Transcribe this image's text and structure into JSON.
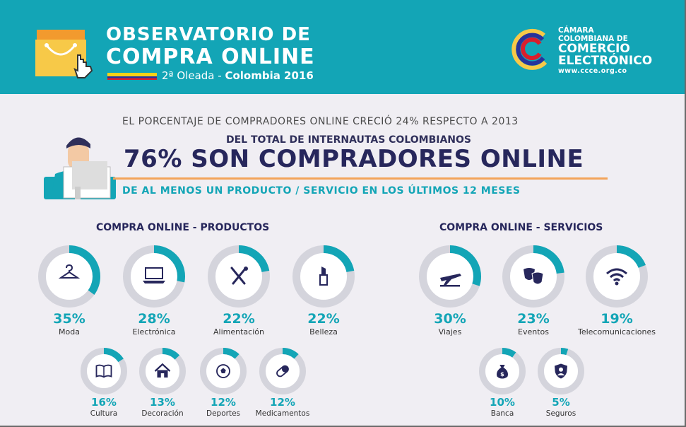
{
  "header": {
    "title_line1": "OBSERVATORIO DE",
    "title_line2": "COMPRA ONLINE",
    "subtitle_wave": "2ª Oleada - ",
    "subtitle_place": "Colombia 2016",
    "logo": {
      "line1": "CÁMARA",
      "line2": "COLOMBIANA DE",
      "line3": "COMERCIO",
      "line4": "ELECTRÓNICO",
      "line5": "www.ccce.org.co"
    }
  },
  "colors": {
    "header_bg": "#13a5b6",
    "accent_teal": "#13a5b6",
    "ring_gray": "#d4d4dc",
    "navy": "#27275c",
    "orange": "#f3a45a",
    "flag_yellow": "#f7d117",
    "flag_blue": "#27339b",
    "flag_red": "#d91e2c"
  },
  "headline": {
    "intro": "EL PORCENTAJE DE COMPRADORES ONLINE CRECIÓ 24% RESPECTO A 2013",
    "sub": "DEL TOTAL DE INTERNAUTAS COLOMBIANOS",
    "big": "76% SON COMPRADORES ONLINE",
    "foot": "DE AL MENOS UN PRODUCTO / SERVICIO EN LOS ÚLTIMOS 12 MESES"
  },
  "chart_data": [
    {
      "type": "pie",
      "title": "COMPRA ONLINE - PRODUCTOS",
      "categories": [
        "Moda",
        "Electrónica",
        "Alimentación",
        "Belleza",
        "Cultura",
        "Decoración",
        "Deportes",
        "Medicamentos"
      ],
      "values": [
        35,
        28,
        22,
        22,
        16,
        13,
        12,
        12
      ],
      "labels": [
        "35%",
        "28%",
        "22%",
        "22%",
        "16%",
        "13%",
        "12%",
        "12%"
      ],
      "icons": [
        "hanger-icon",
        "laptop-icon",
        "cutlery-icon",
        "lipstick-icon",
        "book-icon",
        "house-icon",
        "soccer-ball-icon",
        "pill-icon"
      ]
    },
    {
      "type": "pie",
      "title": "COMPRA ONLINE - SERVICIOS",
      "categories": [
        "Viajes",
        "Eventos",
        "Telecomunicaciones",
        "Banca",
        "Seguros"
      ],
      "values": [
        30,
        23,
        19,
        10,
        5
      ],
      "labels": [
        "30%",
        "23%",
        "19%",
        "10%",
        "5%"
      ],
      "icons": [
        "airplane-icon",
        "theater-masks-icon",
        "wifi-icon",
        "money-bag-icon",
        "shield-person-icon"
      ]
    }
  ]
}
